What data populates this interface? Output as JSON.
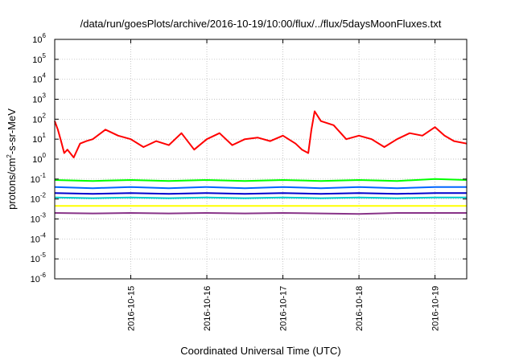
{
  "chart_data": {
    "type": "line",
    "title": "/data/run/goesPlots/archive/2016-10-19/10:00/flux/../flux/5daysMoonFluxes.txt",
    "xlabel": "Coordinated Universal Time (UTC)",
    "ylabel_parts": [
      "protons/cm",
      "2",
      "-s-sr-MeV"
    ],
    "y_scale": "log",
    "ylim": [
      1e-06,
      1000000.0
    ],
    "y_ticks": [
      {
        "base": "10",
        "exp": "-6",
        "value": 1e-06
      },
      {
        "base": "10",
        "exp": "-5",
        "value": 1e-05
      },
      {
        "base": "10",
        "exp": "-4",
        "value": 0.0001
      },
      {
        "base": "10",
        "exp": "-3",
        "value": 0.001
      },
      {
        "base": "10",
        "exp": "-2",
        "value": 0.01
      },
      {
        "base": "10",
        "exp": "-1",
        "value": 0.1
      },
      {
        "base": "10",
        "exp": "0",
        "value": 1
      },
      {
        "base": "10",
        "exp": "1",
        "value": 10
      },
      {
        "base": "10",
        "exp": "2",
        "value": 100
      },
      {
        "base": "10",
        "exp": "3",
        "value": 1000
      },
      {
        "base": "10",
        "exp": "4",
        "value": 10000
      },
      {
        "base": "10",
        "exp": "5",
        "value": 100000
      },
      {
        "base": "10",
        "exp": "6",
        "value": 1000000
      }
    ],
    "xlim": [
      "2016-10-14T00:00",
      "2016-10-19T10:00"
    ],
    "x_ticks": [
      "2016-10-15",
      "2016-10-16",
      "2016-10-17",
      "2016-10-18",
      "2016-10-19"
    ],
    "grid": true,
    "legend": "none",
    "series": [
      {
        "color": "#ff0000",
        "x": [
          "2016-10-14T00:00",
          "2016-10-14T01:00",
          "2016-10-14T02:00",
          "2016-10-14T03:00",
          "2016-10-14T04:00",
          "2016-10-14T06:00",
          "2016-10-14T08:00",
          "2016-10-14T10:00",
          "2016-10-14T12:00",
          "2016-10-14T16:00",
          "2016-10-14T20:00",
          "2016-10-15T00:00",
          "2016-10-15T04:00",
          "2016-10-15T08:00",
          "2016-10-15T12:00",
          "2016-10-15T16:00",
          "2016-10-15T20:00",
          "2016-10-16T00:00",
          "2016-10-16T04:00",
          "2016-10-16T08:00",
          "2016-10-16T12:00",
          "2016-10-16T16:00",
          "2016-10-16T20:00",
          "2016-10-17T00:00",
          "2016-10-17T04:00",
          "2016-10-17T06:00",
          "2016-10-17T08:00",
          "2016-10-17T09:00",
          "2016-10-17T10:00",
          "2016-10-17T12:00",
          "2016-10-17T16:00",
          "2016-10-17T20:00",
          "2016-10-18T00:00",
          "2016-10-18T04:00",
          "2016-10-18T08:00",
          "2016-10-18T12:00",
          "2016-10-18T16:00",
          "2016-10-18T20:00",
          "2016-10-19T00:00",
          "2016-10-19T03:00",
          "2016-10-19T06:00",
          "2016-10-19T10:00"
        ],
        "y": [
          80,
          30,
          8,
          2,
          3,
          1.2,
          6,
          8,
          10,
          30,
          15,
          10,
          4,
          8,
          5,
          20,
          3,
          10,
          20,
          5,
          10,
          12,
          8,
          15,
          6,
          3,
          2,
          30,
          250,
          80,
          50,
          10,
          15,
          10,
          4,
          10,
          20,
          15,
          40,
          15,
          8,
          6
        ]
      },
      {
        "color": "#00ff00",
        "x": [
          "2016-10-14T00:00",
          "2016-10-14T12:00",
          "2016-10-15T00:00",
          "2016-10-15T12:00",
          "2016-10-16T00:00",
          "2016-10-16T12:00",
          "2016-10-17T00:00",
          "2016-10-17T12:00",
          "2016-10-18T00:00",
          "2016-10-18T12:00",
          "2016-10-19T00:00",
          "2016-10-19T10:00"
        ],
        "y": [
          0.09,
          0.08,
          0.09,
          0.08,
          0.09,
          0.08,
          0.09,
          0.08,
          0.09,
          0.08,
          0.1,
          0.09
        ]
      },
      {
        "color": "#0066ff",
        "x": [
          "2016-10-14T00:00",
          "2016-10-14T12:00",
          "2016-10-15T00:00",
          "2016-10-15T12:00",
          "2016-10-16T00:00",
          "2016-10-16T12:00",
          "2016-10-17T00:00",
          "2016-10-17T12:00",
          "2016-10-18T00:00",
          "2016-10-18T12:00",
          "2016-10-19T00:00",
          "2016-10-19T10:00"
        ],
        "y": [
          0.04,
          0.035,
          0.04,
          0.035,
          0.04,
          0.035,
          0.04,
          0.035,
          0.04,
          0.035,
          0.04,
          0.04
        ]
      },
      {
        "color": "#0000cc",
        "x": [
          "2016-10-14T00:00",
          "2016-10-14T12:00",
          "2016-10-15T00:00",
          "2016-10-15T12:00",
          "2016-10-16T00:00",
          "2016-10-16T12:00",
          "2016-10-17T00:00",
          "2016-10-17T12:00",
          "2016-10-18T00:00",
          "2016-10-18T12:00",
          "2016-10-19T00:00",
          "2016-10-19T10:00"
        ],
        "y": [
          0.02,
          0.018,
          0.02,
          0.018,
          0.02,
          0.018,
          0.02,
          0.018,
          0.02,
          0.018,
          0.02,
          0.02
        ]
      },
      {
        "color": "#00cccc",
        "x": [
          "2016-10-14T00:00",
          "2016-10-14T12:00",
          "2016-10-15T00:00",
          "2016-10-15T12:00",
          "2016-10-16T00:00",
          "2016-10-16T12:00",
          "2016-10-17T00:00",
          "2016-10-17T12:00",
          "2016-10-18T00:00",
          "2016-10-18T12:00",
          "2016-10-19T00:00",
          "2016-10-19T10:00"
        ],
        "y": [
          0.012,
          0.011,
          0.012,
          0.011,
          0.012,
          0.011,
          0.012,
          0.011,
          0.012,
          0.011,
          0.012,
          0.012
        ]
      },
      {
        "color": "#ffff00",
        "x": [
          "2016-10-14T00:00",
          "2016-10-14T12:00",
          "2016-10-15T00:00",
          "2016-10-15T12:00",
          "2016-10-16T00:00",
          "2016-10-16T12:00",
          "2016-10-17T00:00",
          "2016-10-17T12:00",
          "2016-10-18T00:00",
          "2016-10-18T12:00",
          "2016-10-19T00:00",
          "2016-10-19T10:00"
        ],
        "y": [
          0.0045,
          0.0045,
          0.0045,
          0.0045,
          0.0045,
          0.0045,
          0.0045,
          0.0045,
          0.0045,
          0.0045,
          0.0045,
          0.0045
        ]
      },
      {
        "color": "#883388",
        "x": [
          "2016-10-14T00:00",
          "2016-10-14T12:00",
          "2016-10-15T00:00",
          "2016-10-15T12:00",
          "2016-10-16T00:00",
          "2016-10-16T12:00",
          "2016-10-17T00:00",
          "2016-10-17T12:00",
          "2016-10-18T00:00",
          "2016-10-18T12:00",
          "2016-10-19T00:00",
          "2016-10-19T10:00"
        ],
        "y": [
          0.002,
          0.0019,
          0.002,
          0.0019,
          0.002,
          0.0019,
          0.002,
          0.0019,
          0.0018,
          0.002,
          0.002,
          0.002
        ]
      }
    ]
  }
}
